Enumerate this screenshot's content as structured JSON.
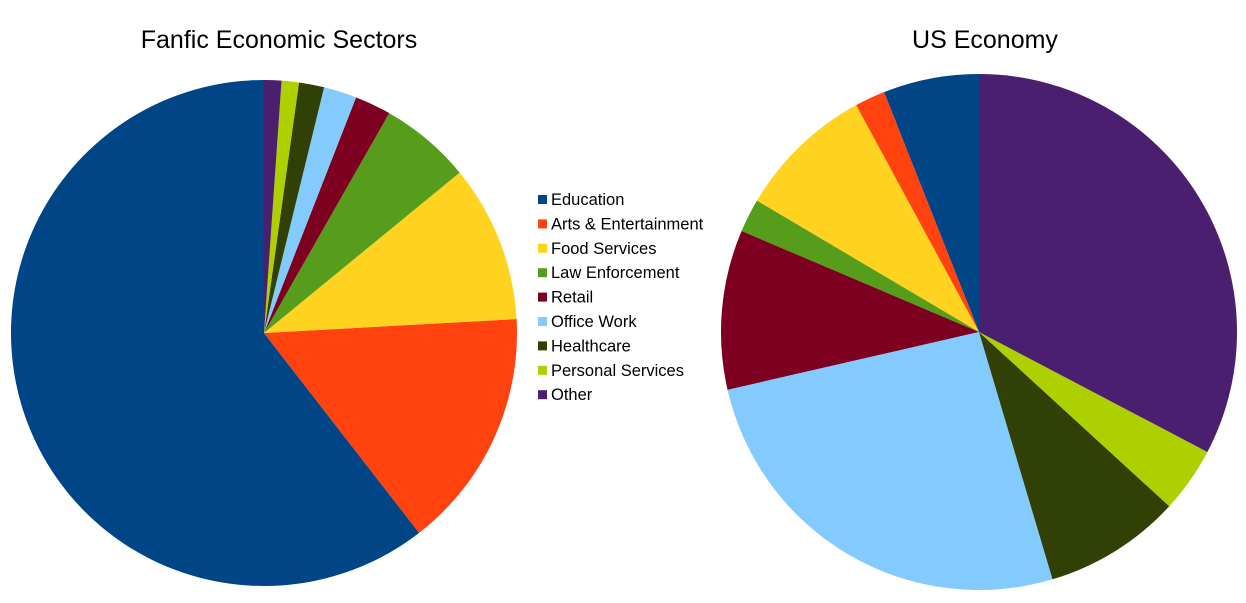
{
  "chart_data": [
    {
      "type": "pie",
      "title": "Fanfic Economic Sectors",
      "categories": [
        "Education",
        "Arts & Entertainment",
        "Food Services",
        "Law Enforcement",
        "Retail",
        "Office Work",
        "Healthcare",
        "Personal Services",
        "Other"
      ],
      "values": [
        60.2,
        15.3,
        10.0,
        5.8,
        2.3,
        2.1,
        1.6,
        1.1,
        1.1
      ],
      "start_angle_deg": 0,
      "direction": "counterclockwise"
    },
    {
      "type": "pie",
      "title": "US Economy",
      "categories": [
        "Education",
        "Arts & Entertainment",
        "Food Services",
        "Law Enforcement",
        "Retail",
        "Office Work",
        "Healthcare",
        "Personal Services",
        "Other"
      ],
      "values": [
        6.0,
        1.9,
        8.6,
        2.1,
        10.0,
        26.0,
        8.6,
        4.1,
        32.7
      ],
      "start_angle_deg": 0,
      "direction": "counterclockwise"
    }
  ],
  "legend": {
    "placement": "center",
    "items": [
      {
        "label": "Education",
        "color": "#004586"
      },
      {
        "label": "Arts & Entertainment",
        "color": "#ff420e"
      },
      {
        "label": "Food Services",
        "color": "#ffd320"
      },
      {
        "label": "Law Enforcement",
        "color": "#579d1c"
      },
      {
        "label": "Retail",
        "color": "#7e0021"
      },
      {
        "label": "Office Work",
        "color": "#83caff"
      },
      {
        "label": "Healthcare",
        "color": "#314004"
      },
      {
        "label": "Personal Services",
        "color": "#aecf00"
      },
      {
        "label": "Other",
        "color": "#4b1f6f"
      }
    ]
  }
}
